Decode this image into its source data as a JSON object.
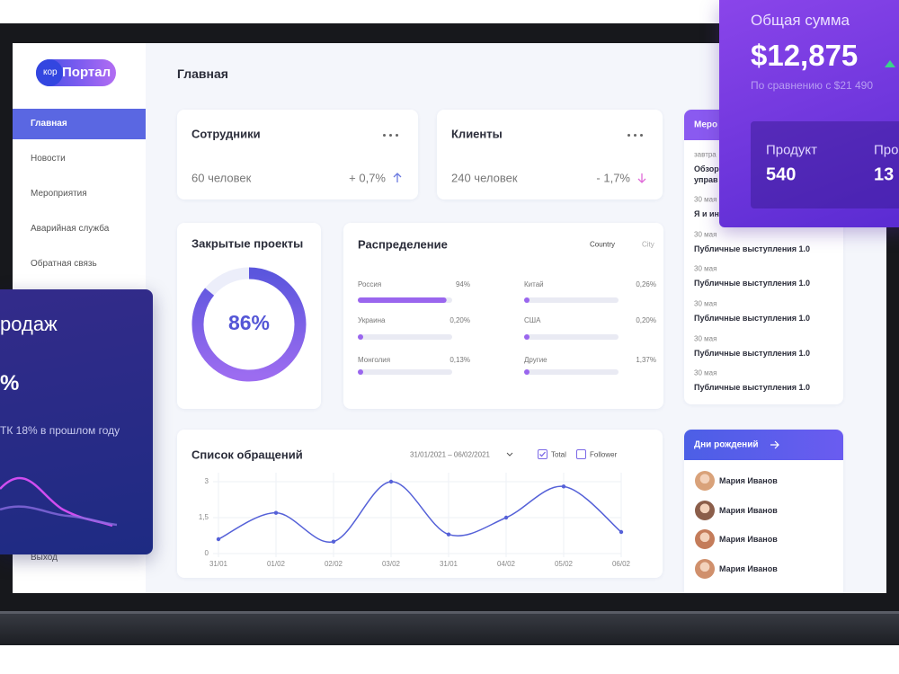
{
  "sidebar": {
    "logo": {
      "prefix": "кор",
      "name": "Портал"
    },
    "nav": [
      "Главная",
      "Новости",
      "Мероприятия",
      "Аварийная служба",
      "Обратная связь",
      "Выход"
    ]
  },
  "header": {
    "title": "Главная"
  },
  "stats": [
    {
      "title": "Сотрудники",
      "count": "60 человек",
      "change": "+ 0,7%"
    },
    {
      "title": "Клиенты",
      "count": "240 человек",
      "change": "- 1,7%"
    }
  ],
  "closed_projects": {
    "title": "Закрытые проекты",
    "value": 86,
    "value_label": "86%"
  },
  "distribution": {
    "title": "Распределение",
    "tabs": [
      "Country",
      "City"
    ],
    "items": [
      {
        "name": "Россия",
        "value": 94,
        "label": "94%"
      },
      {
        "name": "Украина",
        "value": 0.2,
        "label": "0,20%"
      },
      {
        "name": "Монголия",
        "value": 0.13,
        "label": "0,13%"
      },
      {
        "name": "Китай",
        "value": 0.26,
        "label": "0,26%"
      },
      {
        "name": "США",
        "value": 0.2,
        "label": "0,20%"
      },
      {
        "name": "Другие",
        "value": 1.37,
        "label": "1,37%"
      }
    ]
  },
  "requests": {
    "title": "Список обращений",
    "date_range": "31/01/2021 – 06/02/2021",
    "legend": [
      "Total",
      "Follower"
    ],
    "chart_data": {
      "type": "line",
      "categories": [
        "31/01",
        "01/02",
        "02/02",
        "03/02",
        "31/01",
        "04/02",
        "05/02",
        "06/02"
      ],
      "values": [
        0.6,
        1.7,
        0.5,
        3,
        0.8,
        1.5,
        2.8,
        0.9
      ],
      "ylim": [
        0,
        3
      ],
      "yticks": [
        0,
        {
          "value": 1.5,
          "label": "1,5"
        },
        3
      ],
      "color": "#5561d8"
    }
  },
  "events": {
    "title": "Меро",
    "items": [
      {
        "date": "завтра",
        "lines": [
          "Обзор",
          "управ"
        ]
      },
      {
        "date": "30 мая",
        "lines": [
          "Я и ин"
        ]
      },
      {
        "date": "30 мая",
        "lines": [
          "Публичные выступления 1.0"
        ]
      },
      {
        "date": "30 мая",
        "lines": [
          "Публичные выступления 1.0"
        ]
      },
      {
        "date": "30 мая",
        "lines": [
          "Публичные выступления 1.0"
        ]
      },
      {
        "date": "30 мая",
        "lines": [
          "Публичные выступления 1.0"
        ]
      },
      {
        "date": "30 мая",
        "lines": [
          "Публичные выступления 1.0"
        ]
      }
    ]
  },
  "birthdays": {
    "title": "Дни рождений",
    "people": [
      "Мария Иванов",
      "Мария Иванов",
      "Мария Иванов",
      "Мария Иванов"
    ]
  },
  "total_card": {
    "title": "Общая сумма",
    "amount": "$12,875",
    "comparison": "По сравнению с $21 490",
    "products": [
      {
        "label": "Продукт",
        "value": "540"
      },
      {
        "label": "Про",
        "value": "13"
      }
    ]
  },
  "sales_card": {
    "title": "родаж",
    "value": "%",
    "note": "ТК 18% в прошлом году"
  }
}
